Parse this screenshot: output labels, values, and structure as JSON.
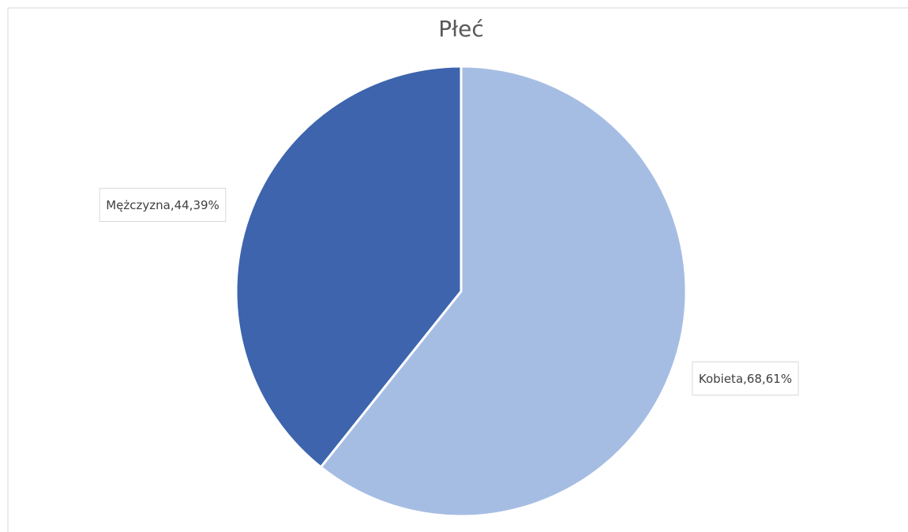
{
  "chart_data": {
    "type": "pie",
    "title": "Płeć",
    "categories": [
      "Kobieta",
      "Mężczyzna"
    ],
    "values": [
      68,
      44
    ],
    "value_labels": [
      ",68,61%",
      ",44,39%"
    ],
    "colors": [
      "#a6bde3",
      "#3d64ad"
    ]
  }
}
